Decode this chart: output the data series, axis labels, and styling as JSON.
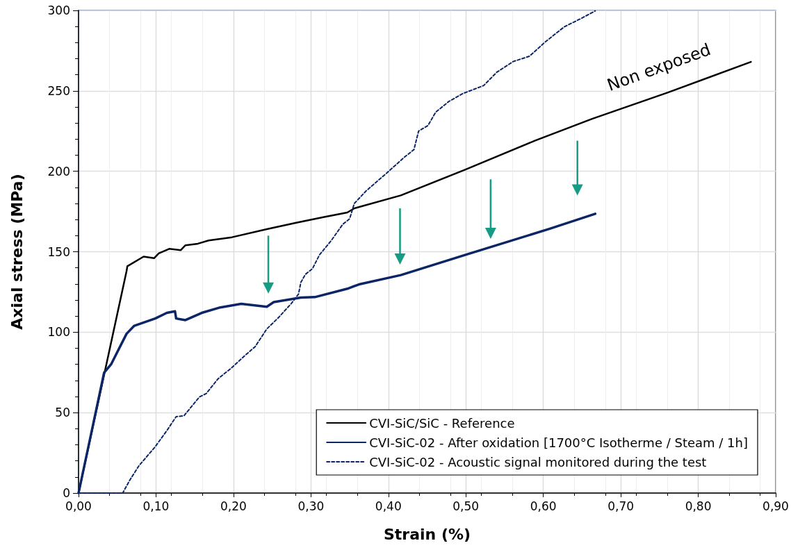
{
  "chart_data": {
    "type": "line",
    "xlabel": "Strain (%)",
    "ylabel": "Axial stress (MPa)",
    "xlim": [
      0,
      0.9
    ],
    "ylim": [
      0,
      300
    ],
    "xticks": [
      {
        "value": 0,
        "label": "0,00"
      },
      {
        "value": 0.1,
        "label": "0,10"
      },
      {
        "value": 0.2,
        "label": "0,20"
      },
      {
        "value": 0.3,
        "label": "0,30"
      },
      {
        "value": 0.4,
        "label": "0,40"
      },
      {
        "value": 0.5,
        "label": "0,50"
      },
      {
        "value": 0.6,
        "label": "0,60"
      },
      {
        "value": 0.7,
        "label": "0,70"
      },
      {
        "value": 0.8,
        "label": "0,80"
      },
      {
        "value": 0.9,
        "label": "0,90"
      }
    ],
    "yticks": [
      0,
      50,
      100,
      150,
      200,
      250,
      300
    ],
    "grid": true,
    "legend": "bottom right",
    "marker": "none",
    "annotations": [
      "Non exposed"
    ],
    "series": [
      {
        "name": "CVI-SiC/SiC - Reference",
        "color": "#000000",
        "line_style": "solid",
        "x": [
          0,
          0.062,
          0.063,
          0.084,
          0.0975,
          0.1035,
          0.117,
          0.132,
          0.138,
          0.154,
          0.168,
          0.198,
          0.243,
          0.281,
          0.317,
          0.347,
          0.356,
          0.416,
          0.499,
          0.589,
          0.663,
          0.761,
          0.868
        ],
        "values": [
          0,
          138,
          141,
          147,
          146,
          149,
          151.8,
          151,
          154,
          155,
          157,
          159,
          164,
          168,
          171.6,
          174.4,
          177,
          185,
          201,
          219,
          232.6,
          249,
          268
        ]
      },
      {
        "name": "CVI-SiC-02 - After oxidation [1700°C Isotherme / Steam / 1h]",
        "color": "#0b2566",
        "line_style": "solid",
        "x": [
          0,
          0.033,
          0.042,
          0.062,
          0.072,
          0.099,
          0.114,
          0.1245,
          0.126,
          0.138,
          0.159,
          0.183,
          0.21,
          0.243,
          0.252,
          0.287,
          0.305,
          0.347,
          0.362,
          0.416,
          0.499,
          0.609,
          0.667
        ],
        "values": [
          0,
          74.8,
          80,
          99,
          104,
          108.5,
          112,
          113,
          108.5,
          107.5,
          112,
          115.4,
          117.6,
          115.8,
          118.7,
          121.5,
          121.8,
          127,
          129.7,
          135.5,
          148,
          164.4,
          173.6
        ]
      },
      {
        "name": "CVI-SiC-02 - Acoustic signal monitored during the test",
        "color": "#0b2566",
        "line_style": "dashed",
        "x": [
          0,
          0.057,
          0.066,
          0.078,
          0.099,
          0.114,
          0.126,
          0.136,
          0.156,
          0.165,
          0.18,
          0.198,
          0.216,
          0.228,
          0.243,
          0.258,
          0.275,
          0.284,
          0.287,
          0.293,
          0.302,
          0.311,
          0.326,
          0.341,
          0.35,
          0.356,
          0.371,
          0.399,
          0.42,
          0.433,
          0.439,
          0.451,
          0.461,
          0.478,
          0.496,
          0.523,
          0.54,
          0.561,
          0.582,
          0.603,
          0.627,
          0.648,
          0.667
        ],
        "values": [
          0,
          0,
          7.9,
          17,
          28.8,
          38.8,
          47.5,
          48,
          59.7,
          61.9,
          71,
          78,
          86,
          91,
          102,
          109,
          118,
          123.7,
          131,
          136,
          139.5,
          148,
          156.8,
          167,
          170.5,
          180,
          187.7,
          199.4,
          208.5,
          213.5,
          225,
          228.4,
          236.7,
          243.4,
          248.3,
          253.3,
          261.6,
          268.2,
          271.5,
          280.6,
          289.8,
          294.8,
          299.7
        ]
      }
    ]
  }
}
